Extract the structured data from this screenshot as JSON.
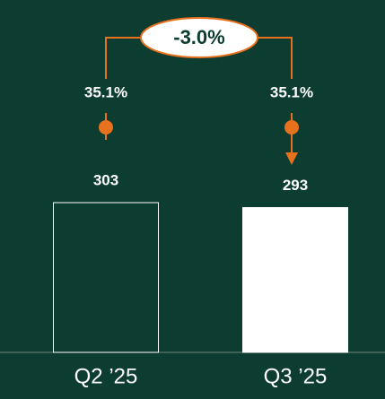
{
  "chart_data": {
    "type": "bar",
    "categories": [
      "Q2 ’25",
      "Q3 ’25"
    ],
    "values": [
      303,
      293
    ],
    "bar_styles": [
      "outline",
      "filled"
    ],
    "color": "#ffffff",
    "annotations": [
      "35.1%",
      "35.1%",
      "-3.0%"
    ],
    "annotation_color": "#e8711e"
  }
}
